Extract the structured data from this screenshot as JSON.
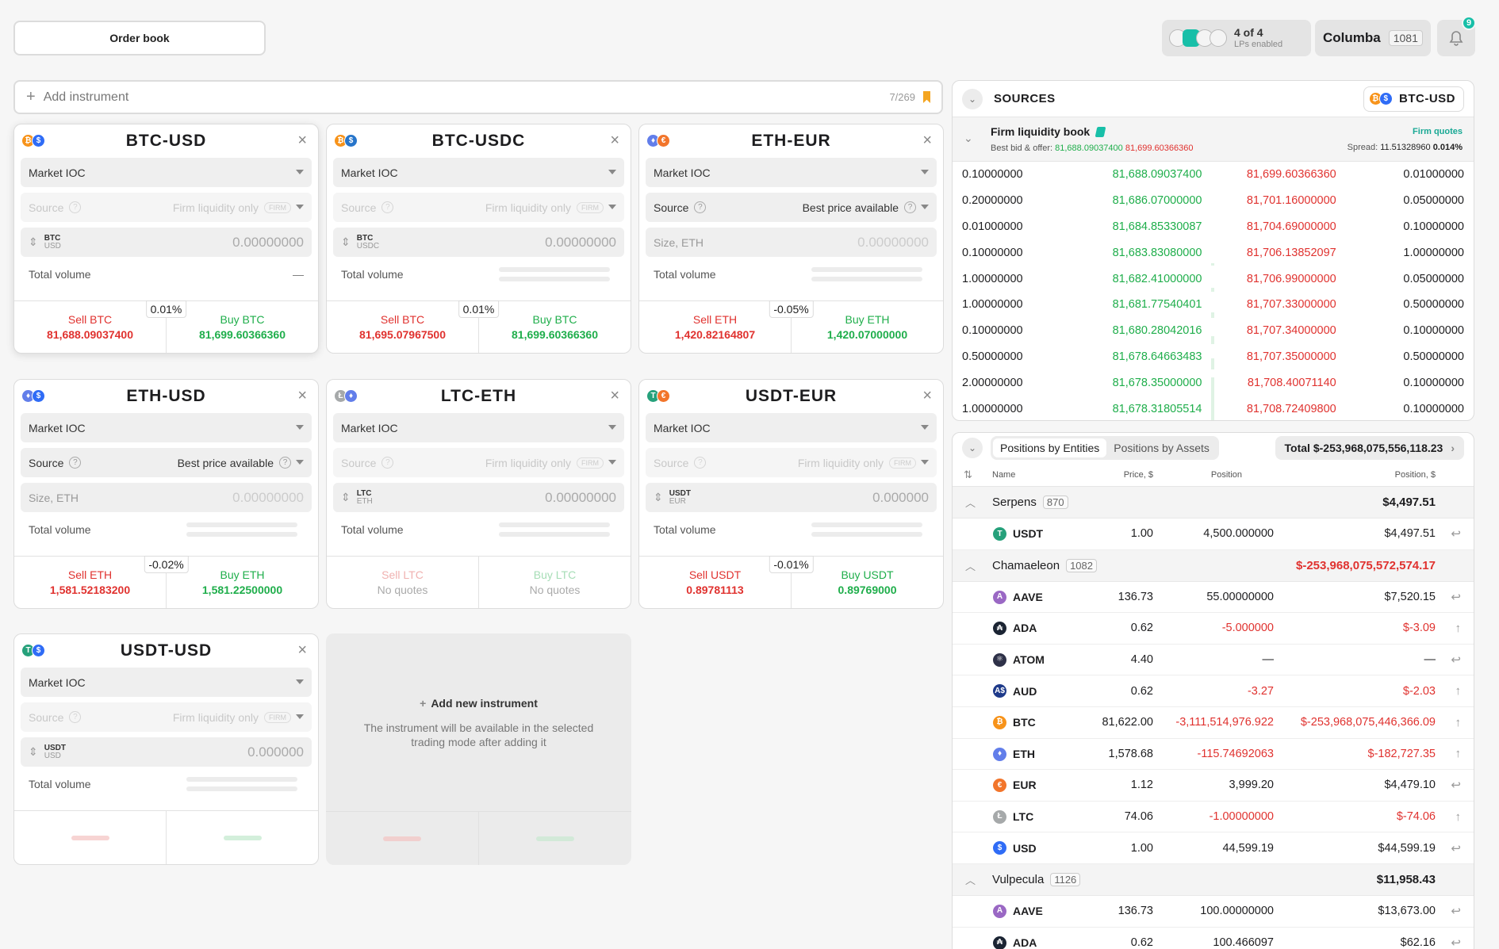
{
  "top": {
    "order_book_tab": "Order book",
    "lps_count": "4 of 4",
    "lps_label": "LPs enabled",
    "user_name": "Columba",
    "user_id": "1081",
    "notifications": "9"
  },
  "add_instrument": {
    "label": "Add instrument",
    "count": "7/269"
  },
  "cards": [
    {
      "title": "BTC-USD",
      "coins": [
        "BTC",
        "USD"
      ],
      "order_type": "Market IOC",
      "source_label": "Source",
      "source_value": "Firm liquidity only",
      "source_tag": "FIRM",
      "size_top": "BTC",
      "size_bot": "USD",
      "size_value": "0.00000000",
      "total_volume_label": "Total volume",
      "total_volume_value": "—",
      "spread": "0.01%",
      "sell_label": "Sell BTC",
      "sell_price": "81,688.09037400",
      "buy_label": "Buy BTC",
      "buy_price": "81,699.60366360"
    },
    {
      "title": "BTC-USDC",
      "coins": [
        "BTC",
        "USDC"
      ],
      "order_type": "Market IOC",
      "source_label": "Source",
      "source_value": "Firm liquidity only",
      "source_tag": "FIRM",
      "size_top": "BTC",
      "size_bot": "USDC",
      "size_value": "0.00000000",
      "total_volume_label": "Total volume",
      "spread": "0.01%",
      "sell_label": "Sell BTC",
      "sell_price": "81,695.07967500",
      "buy_label": "Buy BTC",
      "buy_price": "81,699.60366360"
    },
    {
      "title": "ETH-EUR",
      "coins": [
        "ETH",
        "EUR"
      ],
      "order_type": "Market IOC",
      "source_label": "Source",
      "source_value": "Best price available",
      "size_label": "Size, ETH",
      "size_value": "0.00000000",
      "total_volume_label": "Total volume",
      "spread": "-0.05%",
      "sell_label": "Sell ETH",
      "sell_price": "1,420.82164807",
      "buy_label": "Buy ETH",
      "buy_price": "1,420.07000000"
    },
    {
      "title": "ETH-USD",
      "coins": [
        "ETH",
        "USD"
      ],
      "order_type": "Market IOC",
      "source_label": "Source",
      "source_value": "Best price available",
      "size_label": "Size, ETH",
      "size_value": "0.00000000",
      "total_volume_label": "Total volume",
      "spread": "-0.02%",
      "sell_label": "Sell ETH",
      "sell_price": "1,581.52183200",
      "buy_label": "Buy ETH",
      "buy_price": "1,581.22500000"
    },
    {
      "title": "LTC-ETH",
      "coins": [
        "LTC",
        "ETH"
      ],
      "order_type": "Market IOC",
      "source_label": "Source",
      "source_value": "Firm liquidity only",
      "source_tag": "FIRM",
      "size_top": "LTC",
      "size_bot": "ETH",
      "size_value": "0.00000000",
      "total_volume_label": "Total volume",
      "sell_label": "Sell LTC",
      "sell_price": "No quotes",
      "buy_label": "Buy LTC",
      "buy_price": "No quotes"
    },
    {
      "title": "USDT-EUR",
      "coins": [
        "USDT",
        "EUR"
      ],
      "order_type": "Market IOC",
      "source_label": "Source",
      "source_value": "Firm liquidity only",
      "source_tag": "FIRM",
      "size_top": "USDT",
      "size_bot": "EUR",
      "size_value": "0.000000",
      "total_volume_label": "Total volume",
      "spread": "-0.01%",
      "sell_label": "Sell USDT",
      "sell_price": "0.89781113",
      "buy_label": "Buy USDT",
      "buy_price": "0.89769000"
    },
    {
      "title": "USDT-USD",
      "coins": [
        "USDT",
        "USD"
      ],
      "order_type": "Market IOC",
      "source_label": "Source",
      "source_value": "Firm liquidity only",
      "source_tag": "FIRM",
      "size_top": "USDT",
      "size_bot": "USD",
      "size_value": "0.000000",
      "total_volume_label": "Total volume"
    }
  ],
  "new_instrument": {
    "title": "Add new instrument",
    "desc": "The instrument will be available in the selected trading mode after adding it"
  },
  "sources": {
    "title": "SOURCES",
    "pair": "BTC-USD",
    "flb_title": "Firm liquidity book",
    "bbo_label": "Best bid & offer:",
    "bbo_bid": "81,688.09037400",
    "bbo_ask": "81,699.60366360",
    "firm_quotes": "Firm quotes",
    "spread_label": "Spread:",
    "spread_value": "11.51328960",
    "spread_pct": "0.014%",
    "rows": [
      {
        "bid_size": "0.10000000",
        "bid": "81,688.09037400",
        "ask": "81,699.60366360",
        "ask_size": "0.01000000",
        "depth": 0
      },
      {
        "bid_size": "0.20000000",
        "bid": "81,686.07000000",
        "ask": "81,701.16000000",
        "ask_size": "0.05000000",
        "depth": 0
      },
      {
        "bid_size": "0.01000000",
        "bid": "81,684.85330087",
        "ask": "81,704.69000000",
        "ask_size": "0.10000000",
        "depth": 0
      },
      {
        "bid_size": "0.10000000",
        "bid": "81,683.83080000",
        "ask": "81,706.13852097",
        "ask_size": "1.00000000",
        "depth": 0.1
      },
      {
        "bid_size": "1.00000000",
        "bid": "81,682.41000000",
        "ask": "81,706.99000000",
        "ask_size": "0.05000000",
        "depth": 0.15
      },
      {
        "bid_size": "1.00000000",
        "bid": "81,681.77540401",
        "ask": "81,707.33000000",
        "ask_size": "0.50000000",
        "depth": 0.2
      },
      {
        "bid_size": "0.10000000",
        "bid": "81,680.28042016",
        "ask": "81,707.34000000",
        "ask_size": "0.10000000",
        "depth": 0.3
      },
      {
        "bid_size": "0.50000000",
        "bid": "81,678.64663483",
        "ask": "81,707.35000000",
        "ask_size": "0.50000000",
        "depth": 0.45
      },
      {
        "bid_size": "2.00000000",
        "bid": "81,678.35000000",
        "ask": "81,708.40071140",
        "ask_size": "0.10000000",
        "depth": 0.7
      },
      {
        "bid_size": "1.00000000",
        "bid": "81,678.31805514",
        "ask": "81,708.72409800",
        "ask_size": "0.10000000",
        "depth": 1
      }
    ]
  },
  "positions": {
    "tab_entities": "Positions by Entities",
    "tab_assets": "Positions by Assets",
    "total": "Total $-253,968,075,556,118.23",
    "col_name": "Name",
    "col_price": "Price, $",
    "col_position": "Position",
    "col_value": "Position, $",
    "groups": [
      {
        "name": "Serpens",
        "id": "870",
        "total": "$4,497.51",
        "neg": false,
        "rows": [
          {
            "coin": "USDT",
            "price": "1.00",
            "position": "4,500.000000",
            "value": "$4,497.51",
            "neg": false
          }
        ]
      },
      {
        "name": "Chamaeleon",
        "id": "1082",
        "total": "$-253,968,075,572,574.17",
        "neg": true,
        "rows": [
          {
            "coin": "AAVE",
            "price": "136.73",
            "position": "55.00000000",
            "value": "$7,520.15",
            "neg": false
          },
          {
            "coin": "ADA",
            "price": "0.62",
            "position": "-5.000000",
            "value": "$-3.09",
            "neg": true
          },
          {
            "coin": "ATOM",
            "price": "4.40",
            "position": "—",
            "value": "—",
            "neg": false
          },
          {
            "coin": "AUD",
            "price": "0.62",
            "position": "-3.27",
            "value": "$-2.03",
            "neg": true
          },
          {
            "coin": "BTC",
            "price": "81,622.00",
            "position": "-3,111,514,976.922",
            "value": "$-253,968,075,446,366.09",
            "neg": true
          },
          {
            "coin": "ETH",
            "price": "1,578.68",
            "position": "-115.74692063",
            "value": "$-182,727.35",
            "neg": true
          },
          {
            "coin": "EUR",
            "price": "1.12",
            "position": "3,999.20",
            "value": "$4,479.10",
            "neg": false
          },
          {
            "coin": "LTC",
            "price": "74.06",
            "position": "-1.00000000",
            "value": "$-74.06",
            "neg": true
          },
          {
            "coin": "USD",
            "price": "1.00",
            "position": "44,599.19",
            "value": "$44,599.19",
            "neg": false
          }
        ]
      },
      {
        "name": "Vulpecula",
        "id": "1126",
        "total": "$11,958.43",
        "neg": false,
        "rows": [
          {
            "coin": "AAVE",
            "price": "136.73",
            "position": "100.00000000",
            "value": "$13,673.00",
            "neg": false
          },
          {
            "coin": "ADA",
            "price": "0.62",
            "position": "100.466097",
            "value": "$62.16",
            "neg": false
          }
        ]
      }
    ]
  }
}
